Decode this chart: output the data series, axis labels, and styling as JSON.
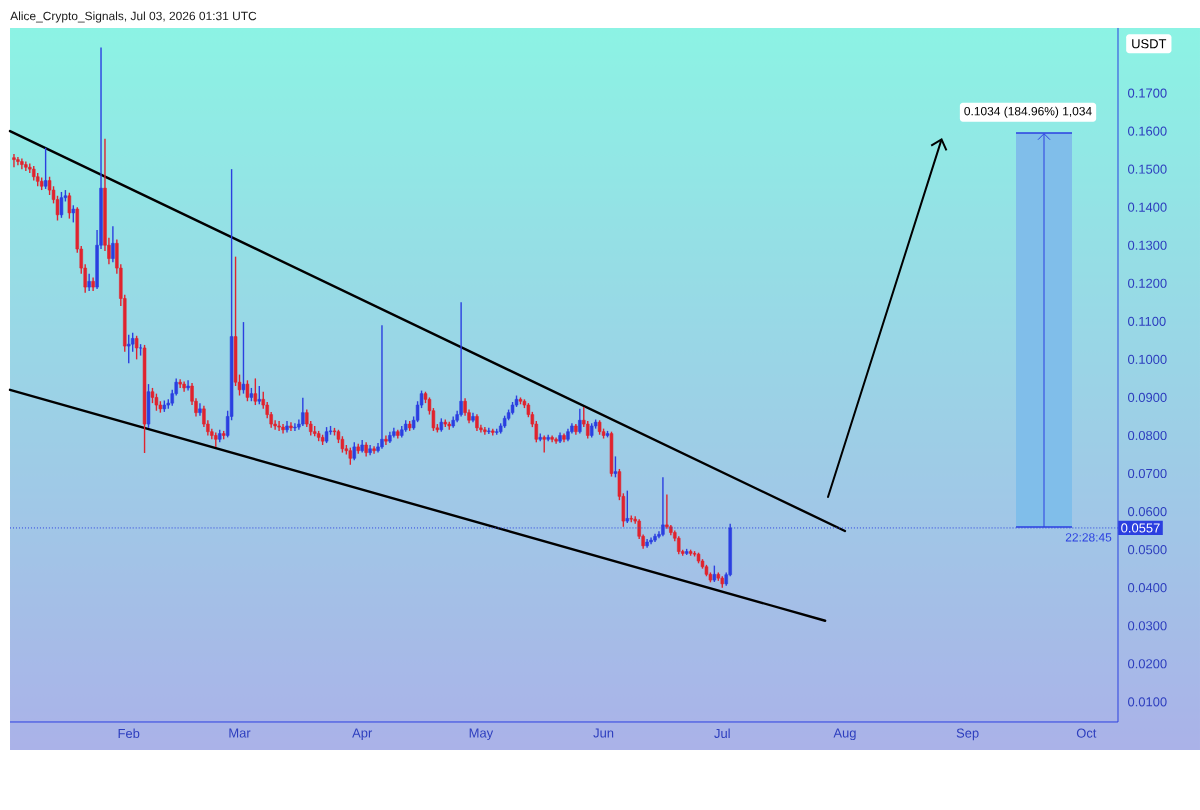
{
  "chart_data": {
    "type": "candlestick",
    "title": "Alice_Crypto_Signals, Jul 03, 2026 01:31 UTC",
    "ylabel": "USDT",
    "colors": [
      "#2b3fe0",
      "#e0232e"
    ],
    "xlim": [
      "2026-01-02",
      "2026-10-09"
    ],
    "ylim": [
      0.0047,
      0.1871
    ],
    "xticks": [
      {
        "value": "2026-02-01",
        "label": "Feb"
      },
      {
        "value": "2026-03-01",
        "label": "Mar"
      },
      {
        "value": "2026-04-01",
        "label": "Apr"
      },
      {
        "value": "2026-05-01",
        "label": "May"
      },
      {
        "value": "2026-06-01",
        "label": "Jun"
      },
      {
        "value": "2026-07-01",
        "label": "Jul"
      },
      {
        "value": "2026-08-01",
        "label": "Aug"
      },
      {
        "value": "2026-09-01",
        "label": "Sep"
      },
      {
        "value": "2026-10-01",
        "label": "Oct"
      }
    ],
    "yticks": [
      {
        "value": 0.01,
        "label": "0.0100"
      },
      {
        "value": 0.02,
        "label": "0.0200"
      },
      {
        "value": 0.03,
        "label": "0.0300"
      },
      {
        "value": 0.04,
        "label": "0.0400"
      },
      {
        "value": 0.05,
        "label": "0.0500"
      },
      {
        "value": 0.06,
        "label": "0.0600"
      },
      {
        "value": 0.07,
        "label": "0.0700"
      },
      {
        "value": 0.08,
        "label": "0.0800"
      },
      {
        "value": 0.09,
        "label": "0.0900"
      },
      {
        "value": 0.1,
        "label": "0.1000"
      },
      {
        "value": 0.11,
        "label": "0.1100"
      },
      {
        "value": 0.12,
        "label": "0.1200"
      },
      {
        "value": 0.13,
        "label": "0.1300"
      },
      {
        "value": 0.14,
        "label": "0.1400"
      },
      {
        "value": 0.15,
        "label": "0.1500"
      },
      {
        "value": 0.16,
        "label": "0.1600"
      },
      {
        "value": 0.17,
        "label": "0.1700"
      }
    ],
    "ref_lines": [
      {
        "axis": "y",
        "value": 0.0557,
        "label": "0.0557",
        "color": "#2b3fe0",
        "line_style": "dotted"
      }
    ],
    "annotations": [
      "0.1034 (184.96%) 1,034",
      {
        "text": "22:28:45",
        "x": "2026-10-09",
        "y": 0.0557
      }
    ],
    "series": [
      {
        "type": "line",
        "x": [
          "2026-01-02",
          "2026-08-01"
        ],
        "values": [
          0.16,
          0.0549
        ],
        "color": "#000000"
      },
      {
        "type": "line",
        "x": [
          "2026-01-02",
          "2026-07-27"
        ],
        "values": [
          0.092,
          0.0313
        ],
        "color": "#000000"
      },
      {
        "x": [
          "2026-01-03",
          "2026-01-04",
          "2026-01-05",
          "2026-01-06",
          "2026-01-07",
          "2026-01-08",
          "2026-01-09",
          "2026-01-10",
          "2026-01-11",
          "2026-01-12",
          "2026-01-13",
          "2026-01-14",
          "2026-01-15",
          "2026-01-16",
          "2026-01-17",
          "2026-01-18",
          "2026-01-19",
          "2026-01-20",
          "2026-01-21",
          "2026-01-22",
          "2026-01-23",
          "2026-01-24",
          "2026-01-25",
          "2026-01-26",
          "2026-01-27",
          "2026-01-28",
          "2026-01-29",
          "2026-01-30",
          "2026-01-31",
          "2026-02-01",
          "2026-02-02",
          "2026-02-03",
          "2026-02-04",
          "2026-02-05",
          "2026-02-06",
          "2026-02-07",
          "2026-02-08",
          "2026-02-09",
          "2026-02-10",
          "2026-02-11",
          "2026-02-12",
          "2026-02-13",
          "2026-02-14",
          "2026-02-15",
          "2026-02-16",
          "2026-02-17",
          "2026-02-18",
          "2026-02-19",
          "2026-02-20",
          "2026-02-21",
          "2026-02-22",
          "2026-02-23",
          "2026-02-24",
          "2026-02-25",
          "2026-02-26",
          "2026-02-27",
          "2026-02-28",
          "2026-03-01",
          "2026-03-02",
          "2026-03-03",
          "2026-03-04",
          "2026-03-05",
          "2026-03-06",
          "2026-03-07",
          "2026-03-08",
          "2026-03-09",
          "2026-03-10",
          "2026-03-11",
          "2026-03-12",
          "2026-03-13",
          "2026-03-14",
          "2026-03-15",
          "2026-03-16",
          "2026-03-17",
          "2026-03-18",
          "2026-03-19",
          "2026-03-20",
          "2026-03-21",
          "2026-03-22",
          "2026-03-23",
          "2026-03-24",
          "2026-03-25",
          "2026-03-26",
          "2026-03-27",
          "2026-03-28",
          "2026-03-29",
          "2026-03-30",
          "2026-03-31",
          "2026-04-01",
          "2026-04-02",
          "2026-04-03",
          "2026-04-04",
          "2026-04-05",
          "2026-04-06",
          "2026-04-07",
          "2026-04-08",
          "2026-04-09",
          "2026-04-10",
          "2026-04-11",
          "2026-04-12",
          "2026-04-13",
          "2026-04-14",
          "2026-04-15",
          "2026-04-16",
          "2026-04-17",
          "2026-04-18",
          "2026-04-19",
          "2026-04-20",
          "2026-04-21",
          "2026-04-22",
          "2026-04-23",
          "2026-04-24",
          "2026-04-25",
          "2026-04-26",
          "2026-04-27",
          "2026-04-28",
          "2026-04-29",
          "2026-04-30",
          "2026-05-01",
          "2026-05-02",
          "2026-05-03",
          "2026-05-04",
          "2026-05-05",
          "2026-05-06",
          "2026-05-07",
          "2026-05-08",
          "2026-05-09",
          "2026-05-10",
          "2026-05-11",
          "2026-05-12",
          "2026-05-13",
          "2026-05-14",
          "2026-05-15",
          "2026-05-16",
          "2026-05-17",
          "2026-05-18",
          "2026-05-19",
          "2026-05-20",
          "2026-05-21",
          "2026-05-22",
          "2026-05-23",
          "2026-05-24",
          "2026-05-25",
          "2026-05-26",
          "2026-05-27",
          "2026-05-28",
          "2026-05-29",
          "2026-05-30",
          "2026-05-31",
          "2026-06-01",
          "2026-06-02",
          "2026-06-03",
          "2026-06-04",
          "2026-06-05",
          "2026-06-06",
          "2026-06-07",
          "2026-06-08",
          "2026-06-09",
          "2026-06-10",
          "2026-06-11",
          "2026-06-12",
          "2026-06-13",
          "2026-06-14",
          "2026-06-15",
          "2026-06-16",
          "2026-06-17",
          "2026-06-18",
          "2026-06-19",
          "2026-06-20",
          "2026-06-21",
          "2026-06-22",
          "2026-06-23",
          "2026-06-24",
          "2026-06-25",
          "2026-06-26",
          "2026-06-27",
          "2026-06-28",
          "2026-06-29",
          "2026-06-30",
          "2026-07-01",
          "2026-07-02",
          "2026-07-03"
        ],
        "ohlc": [
          [
            0.153,
            0.154,
            0.1505,
            0.1525
          ],
          [
            0.1525,
            0.1532,
            0.151,
            0.152
          ],
          [
            0.152,
            0.1528,
            0.15,
            0.1512
          ],
          [
            0.1512,
            0.152,
            0.1495,
            0.1505
          ],
          [
            0.1505,
            0.1515,
            0.149,
            0.15
          ],
          [
            0.15,
            0.1508,
            0.147,
            0.148
          ],
          [
            0.148,
            0.149,
            0.1455,
            0.1468
          ],
          [
            0.1468,
            0.1478,
            0.1445,
            0.1455
          ],
          [
            0.1455,
            0.1556,
            0.1448,
            0.147
          ],
          [
            0.147,
            0.148,
            0.1432,
            0.1445
          ],
          [
            0.1445,
            0.1455,
            0.141,
            0.142
          ],
          [
            0.142,
            0.143,
            0.1365,
            0.138
          ],
          [
            0.138,
            0.144,
            0.1372,
            0.1425
          ],
          [
            0.1425,
            0.1445,
            0.1415,
            0.143
          ],
          [
            0.143,
            0.1438,
            0.137,
            0.1385
          ],
          [
            0.1385,
            0.1405,
            0.136,
            0.1395
          ],
          [
            0.1395,
            0.14,
            0.128,
            0.129
          ],
          [
            0.129,
            0.1298,
            0.1225,
            0.124
          ],
          [
            0.124,
            0.125,
            0.1175,
            0.119
          ],
          [
            0.119,
            0.1225,
            0.118,
            0.1205
          ],
          [
            0.1205,
            0.1215,
            0.118,
            0.119
          ],
          [
            0.119,
            0.134,
            0.1185,
            0.13
          ],
          [
            0.13,
            0.182,
            0.129,
            0.145
          ],
          [
            0.145,
            0.158,
            0.1285,
            0.13
          ],
          [
            0.13,
            0.132,
            0.125,
            0.1265
          ],
          [
            0.1265,
            0.135,
            0.1255,
            0.1305
          ],
          [
            0.1305,
            0.1315,
            0.1225,
            0.124
          ],
          [
            0.124,
            0.125,
            0.114,
            0.116
          ],
          [
            0.116,
            0.117,
            0.102,
            0.1035
          ],
          [
            0.1035,
            0.1065,
            0.099,
            0.104
          ],
          [
            0.104,
            0.107,
            0.102,
            0.1055
          ],
          [
            0.1055,
            0.1062,
            0.1,
            0.103
          ],
          [
            0.103,
            0.104,
            0.101,
            0.103
          ],
          [
            0.103,
            0.1038,
            0.0754,
            0.083
          ],
          [
            0.083,
            0.0935,
            0.082,
            0.0915
          ],
          [
            0.0915,
            0.0925,
            0.0885,
            0.09
          ],
          [
            0.09,
            0.091,
            0.0865,
            0.088
          ],
          [
            0.088,
            0.089,
            0.086,
            0.087
          ],
          [
            0.087,
            0.0892,
            0.0862,
            0.088
          ],
          [
            0.088,
            0.0895,
            0.087,
            0.0885
          ],
          [
            0.0885,
            0.092,
            0.0878,
            0.091
          ],
          [
            0.091,
            0.095,
            0.0905,
            0.094
          ],
          [
            0.094,
            0.0948,
            0.0925,
            0.0935
          ],
          [
            0.0935,
            0.0942,
            0.0915,
            0.0925
          ],
          [
            0.0925,
            0.0945,
            0.0918,
            0.093
          ],
          [
            0.093,
            0.0938,
            0.088,
            0.089
          ],
          [
            0.089,
            0.0898,
            0.085,
            0.086
          ],
          [
            0.086,
            0.0885,
            0.0852,
            0.087
          ],
          [
            0.087,
            0.0878,
            0.0822,
            0.083
          ],
          [
            0.083,
            0.084,
            0.08,
            0.081
          ],
          [
            0.081,
            0.0818,
            0.079,
            0.08
          ],
          [
            0.08,
            0.0808,
            0.077,
            0.079
          ],
          [
            0.079,
            0.0815,
            0.0782,
            0.0805
          ],
          [
            0.0805,
            0.0812,
            0.079,
            0.08
          ],
          [
            0.08,
            0.0865,
            0.0795,
            0.085
          ],
          [
            0.085,
            0.15,
            0.084,
            0.106
          ],
          [
            0.106,
            0.127,
            0.093,
            0.094
          ],
          [
            0.094,
            0.096,
            0.0905,
            0.092
          ],
          [
            0.092,
            0.1098,
            0.091,
            0.0935
          ],
          [
            0.0935,
            0.0945,
            0.089,
            0.09
          ],
          [
            0.09,
            0.0925,
            0.089,
            0.091
          ],
          [
            0.091,
            0.095,
            0.088,
            0.089
          ],
          [
            0.089,
            0.093,
            0.0882,
            0.0895
          ],
          [
            0.0895,
            0.0915,
            0.087,
            0.088
          ],
          [
            0.088,
            0.0888,
            0.0845,
            0.0855
          ],
          [
            0.0855,
            0.0862,
            0.082,
            0.083
          ],
          [
            0.083,
            0.084,
            0.0815,
            0.0825
          ],
          [
            0.0825,
            0.0838,
            0.0812,
            0.0822
          ],
          [
            0.0822,
            0.083,
            0.0805,
            0.0815
          ],
          [
            0.0815,
            0.0838,
            0.0808,
            0.0825
          ],
          [
            0.0825,
            0.0835,
            0.0812,
            0.082
          ],
          [
            0.082,
            0.0832,
            0.0812,
            0.0822
          ],
          [
            0.0822,
            0.0842,
            0.0815,
            0.083
          ],
          [
            0.083,
            0.0899,
            0.0825,
            0.086
          ],
          [
            0.086,
            0.0868,
            0.0822,
            0.083
          ],
          [
            0.083,
            0.0838,
            0.08,
            0.081
          ],
          [
            0.081,
            0.0825,
            0.0798,
            0.0805
          ],
          [
            0.0805,
            0.0812,
            0.0785,
            0.0795
          ],
          [
            0.0795,
            0.0802,
            0.0775,
            0.0785
          ],
          [
            0.0785,
            0.0822,
            0.078,
            0.081
          ],
          [
            0.081,
            0.0825,
            0.0802,
            0.0812
          ],
          [
            0.0812,
            0.082,
            0.08,
            0.081
          ],
          [
            0.081,
            0.0815,
            0.078,
            0.079
          ],
          [
            0.079,
            0.0798,
            0.0755,
            0.0765
          ],
          [
            0.0765,
            0.0775,
            0.075,
            0.076
          ],
          [
            0.076,
            0.0768,
            0.0723,
            0.074
          ],
          [
            0.074,
            0.0782,
            0.0735,
            0.077
          ],
          [
            0.077,
            0.0778,
            0.0752,
            0.076
          ],
          [
            0.076,
            0.0788,
            0.0755,
            0.0775
          ],
          [
            0.0775,
            0.0782,
            0.0745,
            0.0755
          ],
          [
            0.0755,
            0.0775,
            0.0748,
            0.0765
          ],
          [
            0.0765,
            0.0772,
            0.0752,
            0.076
          ],
          [
            0.076,
            0.078,
            0.0755,
            0.077
          ],
          [
            0.077,
            0.109,
            0.0765,
            0.079
          ],
          [
            0.079,
            0.08,
            0.0775,
            0.0785
          ],
          [
            0.0785,
            0.081,
            0.078,
            0.08
          ],
          [
            0.08,
            0.082,
            0.0795,
            0.081
          ],
          [
            0.081,
            0.0815,
            0.0792,
            0.08
          ],
          [
            0.08,
            0.0825,
            0.0795,
            0.0815
          ],
          [
            0.0815,
            0.084,
            0.081,
            0.083
          ],
          [
            0.083,
            0.0838,
            0.0812,
            0.082
          ],
          [
            0.082,
            0.085,
            0.0815,
            0.084
          ],
          [
            0.084,
            0.089,
            0.0835,
            0.088
          ],
          [
            0.088,
            0.0918,
            0.0872,
            0.091
          ],
          [
            0.091,
            0.0915,
            0.0885,
            0.0895
          ],
          [
            0.0895,
            0.09,
            0.0855,
            0.0865
          ],
          [
            0.0865,
            0.0872,
            0.0812,
            0.082
          ],
          [
            0.082,
            0.083,
            0.0808,
            0.0815
          ],
          [
            0.0815,
            0.0845,
            0.081,
            0.0835
          ],
          [
            0.0835,
            0.0842,
            0.0822,
            0.083
          ],
          [
            0.083,
            0.0836,
            0.0815,
            0.0825
          ],
          [
            0.0825,
            0.085,
            0.082,
            0.084
          ],
          [
            0.084,
            0.0865,
            0.0835,
            0.0855
          ],
          [
            0.0855,
            0.115,
            0.085,
            0.089
          ],
          [
            0.089,
            0.0898,
            0.0852,
            0.086
          ],
          [
            0.086,
            0.0868,
            0.0832,
            0.084
          ],
          [
            0.084,
            0.086,
            0.0835,
            0.085
          ],
          [
            0.085,
            0.0856,
            0.0812,
            0.082
          ],
          [
            0.082,
            0.0828,
            0.0808,
            0.0815
          ],
          [
            0.0815,
            0.0822,
            0.0802,
            0.081
          ],
          [
            0.081,
            0.082,
            0.0804,
            0.0812
          ],
          [
            0.0812,
            0.0818,
            0.08,
            0.0808
          ],
          [
            0.0808,
            0.0818,
            0.0802,
            0.081
          ],
          [
            0.081,
            0.0832,
            0.0805,
            0.0825
          ],
          [
            0.0825,
            0.0852,
            0.082,
            0.0845
          ],
          [
            0.0845,
            0.0868,
            0.084,
            0.086
          ],
          [
            0.086,
            0.0888,
            0.0855,
            0.088
          ],
          [
            0.088,
            0.0905,
            0.0875,
            0.0895
          ],
          [
            0.0895,
            0.09,
            0.0882,
            0.089
          ],
          [
            0.089,
            0.0895,
            0.0872,
            0.088
          ],
          [
            0.088,
            0.0885,
            0.0848,
            0.0855
          ],
          [
            0.0855,
            0.0862,
            0.0822,
            0.083
          ],
          [
            0.083,
            0.0838,
            0.0782,
            0.079
          ],
          [
            0.079,
            0.0805,
            0.0785,
            0.0795
          ],
          [
            0.0795,
            0.08,
            0.0755,
            0.079
          ],
          [
            0.079,
            0.0802,
            0.0785,
            0.0795
          ],
          [
            0.0795,
            0.08,
            0.0782,
            0.079
          ],
          [
            0.079,
            0.0795,
            0.0778,
            0.0785
          ],
          [
            0.0785,
            0.0808,
            0.078,
            0.08
          ],
          [
            0.08,
            0.0805,
            0.0782,
            0.079
          ],
          [
            0.079,
            0.0818,
            0.0785,
            0.081
          ],
          [
            0.081,
            0.0832,
            0.0805,
            0.0825
          ],
          [
            0.0825,
            0.083,
            0.0802,
            0.081
          ],
          [
            0.081,
            0.087,
            0.0805,
            0.084
          ],
          [
            0.084,
            0.0875,
            0.0822,
            0.083
          ],
          [
            0.083,
            0.0838,
            0.0792,
            0.08
          ],
          [
            0.08,
            0.0832,
            0.0795,
            0.0825
          ],
          [
            0.0825,
            0.0842,
            0.0818,
            0.0835
          ],
          [
            0.0835,
            0.084,
            0.0802,
            0.081
          ],
          [
            0.081,
            0.0818,
            0.0792,
            0.08
          ],
          [
            0.08,
            0.0812,
            0.0795,
            0.0805
          ],
          [
            0.0805,
            0.081,
            0.0692,
            0.07
          ],
          [
            0.07,
            0.0745,
            0.069,
            0.0705
          ],
          [
            0.0705,
            0.0712,
            0.063,
            0.064
          ],
          [
            0.064,
            0.0648,
            0.056,
            0.0575
          ],
          [
            0.0575,
            0.0655,
            0.057,
            0.0582
          ],
          [
            0.0582,
            0.059,
            0.0572,
            0.058
          ],
          [
            0.058,
            0.0588,
            0.0568,
            0.0575
          ],
          [
            0.0575,
            0.058,
            0.0528,
            0.0535
          ],
          [
            0.0535,
            0.054,
            0.0502,
            0.051
          ],
          [
            0.051,
            0.0528,
            0.0505,
            0.052
          ],
          [
            0.052,
            0.0532,
            0.0514,
            0.0525
          ],
          [
            0.0525,
            0.0542,
            0.052,
            0.0535
          ],
          [
            0.0535,
            0.0548,
            0.053,
            0.054
          ],
          [
            0.054,
            0.069,
            0.0535,
            0.0565
          ],
          [
            0.0565,
            0.0645,
            0.0555,
            0.056
          ],
          [
            0.056,
            0.0565,
            0.0538,
            0.0545
          ],
          [
            0.0545,
            0.055,
            0.0522,
            0.053
          ],
          [
            0.053,
            0.0535,
            0.0488,
            0.0495
          ],
          [
            0.0495,
            0.05,
            0.0484,
            0.049
          ],
          [
            0.049,
            0.0502,
            0.0486,
            0.0495
          ],
          [
            0.0495,
            0.05,
            0.0484,
            0.049
          ],
          [
            0.049,
            0.0496,
            0.0482,
            0.0488
          ],
          [
            0.0488,
            0.0492,
            0.0464,
            0.047
          ],
          [
            0.047,
            0.0475,
            0.045,
            0.0455
          ],
          [
            0.0455,
            0.046,
            0.043,
            0.0435
          ],
          [
            0.0435,
            0.044,
            0.0414,
            0.042
          ],
          [
            0.042,
            0.0458,
            0.0415,
            0.0435
          ],
          [
            0.0435,
            0.044,
            0.0418,
            0.0425
          ],
          [
            0.0425,
            0.043,
            0.04,
            0.041
          ],
          [
            0.041,
            0.044,
            0.0405,
            0.0434
          ],
          [
            0.0434,
            0.0568,
            0.043,
            0.0557
          ]
        ]
      }
    ]
  }
}
